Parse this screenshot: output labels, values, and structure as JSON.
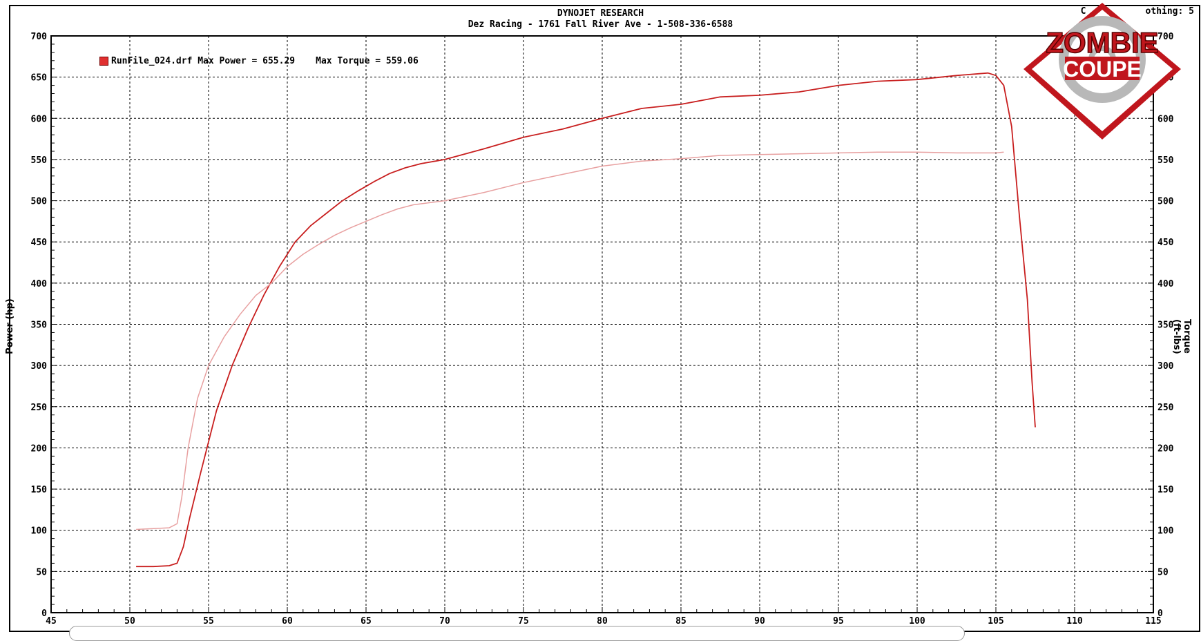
{
  "header": {
    "title": "DYNOJET RESEARCH",
    "subtitle": "Dez Racing - 1761 Fall River Ave - 1-508-336-6588",
    "smoothing": "C           othing: 5"
  },
  "legend": {
    "run_file": "RunFile_024.drf",
    "max_power": "Max Power = 655.29",
    "max_torque": "Max Torque = 559.06"
  },
  "logo": {
    "line1": "ZOMBIE",
    "line2": "COUPE"
  },
  "colors": {
    "power": "#c81e1e",
    "torque": "#e8a0a0",
    "grid": "#000000",
    "frame": "#000000"
  },
  "chart_data": {
    "type": "line",
    "title": "DYNOJET RESEARCH",
    "xlabel": "",
    "ylabel": "Power (hp)",
    "y2label": "Torque (ft-lbs)",
    "xlim": [
      45,
      115
    ],
    "ylim": [
      0,
      700
    ],
    "y2lim": [
      0,
      700
    ],
    "xticks": [
      45,
      50,
      55,
      60,
      65,
      70,
      75,
      80,
      85,
      90,
      95,
      100,
      105,
      110,
      115
    ],
    "yticks": [
      0,
      50,
      100,
      150,
      200,
      250,
      300,
      350,
      400,
      450,
      500,
      550,
      600,
      650,
      700
    ],
    "grid": true,
    "legend": "top-left",
    "series": [
      {
        "name": "Max Power = 655.29",
        "x": [
          50.4,
          51.5,
          52.5,
          53.0,
          53.4,
          53.8,
          54.5,
          55.5,
          56.5,
          57.5,
          58.5,
          59.5,
          60.5,
          61.5,
          62.5,
          63.5,
          64.5,
          65.5,
          66.5,
          67.5,
          68.5,
          70.0,
          72.5,
          75.0,
          77.5,
          80.0,
          82.5,
          85.0,
          87.5,
          90.0,
          92.5,
          95.0,
          97.5,
          100.0,
          102.5,
          104.5,
          105.0,
          105.5,
          106.0,
          106.5,
          107.0,
          107.3,
          107.5
        ],
        "values": [
          56,
          56,
          57,
          60,
          80,
          115,
          170,
          245,
          300,
          345,
          385,
          420,
          450,
          470,
          485,
          500,
          512,
          523,
          533,
          540,
          545,
          550,
          563,
          577,
          587,
          600,
          612,
          617,
          626,
          628,
          632,
          640,
          645,
          647,
          652,
          655,
          652,
          640,
          590,
          480,
          380,
          280,
          225
        ]
      },
      {
        "name": "Max Torque = 559.06",
        "x": [
          50.4,
          51.5,
          52.5,
          53.0,
          53.3,
          53.7,
          54.3,
          55.0,
          56.0,
          57.0,
          58.0,
          59.0,
          60.0,
          61.0,
          62.0,
          63.0,
          64.0,
          65.0,
          66.0,
          67.0,
          68.0,
          70.0,
          72.5,
          75.0,
          77.5,
          80.0,
          82.5,
          85.0,
          87.5,
          90.0,
          92.5,
          95.0,
          97.5,
          100.0,
          102.5,
          104.5,
          105.0,
          105.5
        ],
        "values": [
          101,
          102,
          103,
          108,
          140,
          200,
          260,
          300,
          335,
          362,
          385,
          400,
          420,
          435,
          447,
          458,
          467,
          475,
          483,
          490,
          495,
          500,
          510,
          522,
          532,
          542,
          548,
          551,
          555,
          556,
          557,
          558,
          559,
          559,
          558,
          558,
          558,
          559
        ]
      }
    ]
  }
}
